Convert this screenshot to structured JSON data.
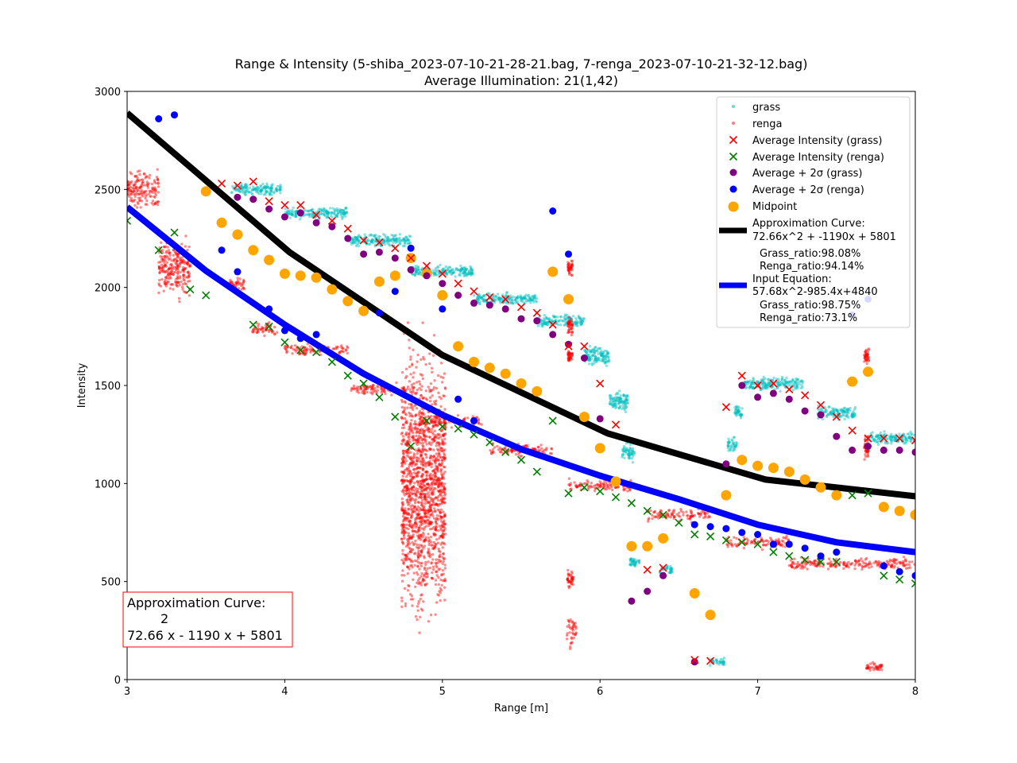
{
  "chart_data": {
    "type": "scatter",
    "title": "Range & Intensity (5-shiba_2023-07-10-21-28-21.bag, 7-renga_2023-07-10-21-32-12.bag)",
    "subtitle": "Average Illumination: 21(1,42)",
    "xlabel": "Range [m]",
    "ylabel": "Intensity",
    "xlim": [
      3,
      8
    ],
    "ylim": [
      0,
      3000
    ],
    "xticks": [
      3,
      4,
      5,
      6,
      7,
      8
    ],
    "yticks": [
      0,
      500,
      1000,
      1500,
      2000,
      2500,
      3000
    ],
    "grid": false,
    "legend_position": "top-right",
    "colors": {
      "grass": "#00bfbf",
      "renga": "#ff0000",
      "avg_grass": "#ff0000",
      "avg_renga": "#008000",
      "avg2s_grass": "#800080",
      "avg2s_renga": "#0000ff",
      "midpoint": "#ffa500",
      "approx_curve": "#000000",
      "input_curve": "#0000ff"
    },
    "legend": {
      "grass": "grass",
      "renga": "renga",
      "avg_grass": "Average Intensity (grass)",
      "avg_renga": "Average Intensity (renga)",
      "avg2s_grass": "Average + 2σ (grass)",
      "avg2s_renga": "Average + 2σ (renga)",
      "midpoint": "Midpoint",
      "approx_line1": "Approximation Curve:",
      "approx_line2": "72.66x^2 + -1190x + 5801",
      "approx_ratio1": "Grass_ratio:98.08%",
      "approx_ratio2": "Renga_ratio:94.14%",
      "input_line1": "Input Equation:",
      "input_line2": "57.68x^2-985.4x+4840",
      "input_ratio1": "Grass_ratio:98.75%",
      "input_ratio2": "Renga_ratio:73.1%"
    },
    "annotation": {
      "line1": "Approximation Curve:",
      "line2": "2",
      "line3": "72.66 x - 1190 x + 5801"
    },
    "approx_curve": {
      "x": [
        3.0,
        4.03,
        5.0,
        6.05,
        7.05,
        8.0
      ],
      "y": [
        2890,
        2180,
        1655,
        1255,
        1020,
        935
      ]
    },
    "input_curve": {
      "x": [
        3.0,
        3.5,
        4.0,
        4.5,
        5.0,
        5.5,
        6.0,
        6.5,
        7.0,
        7.5,
        8.0
      ],
      "y": [
        2410,
        2085,
        1810,
        1560,
        1350,
        1175,
        1040,
        920,
        790,
        700,
        650
      ]
    },
    "grass_clusters": [
      {
        "x": 3.82,
        "y": 2500,
        "w": 0.32,
        "h": 80
      },
      {
        "x": 4.2,
        "y": 2380,
        "w": 0.4,
        "h": 80
      },
      {
        "x": 4.6,
        "y": 2240,
        "w": 0.4,
        "h": 80
      },
      {
        "x": 5.0,
        "y": 2080,
        "w": 0.4,
        "h": 80
      },
      {
        "x": 5.4,
        "y": 1940,
        "w": 0.4,
        "h": 80
      },
      {
        "x": 5.75,
        "y": 1830,
        "w": 0.3,
        "h": 80
      },
      {
        "x": 5.98,
        "y": 1650,
        "w": 0.16,
        "h": 140
      },
      {
        "x": 6.12,
        "y": 1420,
        "w": 0.12,
        "h": 140
      },
      {
        "x": 6.18,
        "y": 1160,
        "w": 0.08,
        "h": 120
      },
      {
        "x": 6.22,
        "y": 600,
        "w": 0.06,
        "h": 70
      },
      {
        "x": 6.42,
        "y": 560,
        "w": 0.08,
        "h": 70
      },
      {
        "x": 6.74,
        "y": 90,
        "w": 0.1,
        "h": 50
      },
      {
        "x": 6.84,
        "y": 1200,
        "w": 0.06,
        "h": 90
      },
      {
        "x": 6.88,
        "y": 1360,
        "w": 0.05,
        "h": 90
      },
      {
        "x": 7.1,
        "y": 1510,
        "w": 0.38,
        "h": 90
      },
      {
        "x": 7.5,
        "y": 1360,
        "w": 0.24,
        "h": 90
      },
      {
        "x": 7.85,
        "y": 1230,
        "w": 0.3,
        "h": 80
      }
    ],
    "renga_clusters": [
      {
        "x": 3.1,
        "y": 2500,
        "w": 0.2,
        "h": 260
      },
      {
        "x": 3.3,
        "y": 2100,
        "w": 0.2,
        "h": 400
      },
      {
        "x": 3.7,
        "y": 2020,
        "w": 0.1,
        "h": 90
      },
      {
        "x": 3.88,
        "y": 1790,
        "w": 0.18,
        "h": 90
      },
      {
        "x": 4.2,
        "y": 1680,
        "w": 0.4,
        "h": 80
      },
      {
        "x": 4.62,
        "y": 1480,
        "w": 0.4,
        "h": 80
      },
      {
        "x": 5.05,
        "y": 1320,
        "w": 0.4,
        "h": 80
      },
      {
        "x": 5.5,
        "y": 1170,
        "w": 0.4,
        "h": 80
      },
      {
        "x": 6.0,
        "y": 990,
        "w": 0.4,
        "h": 80
      },
      {
        "x": 6.5,
        "y": 840,
        "w": 0.4,
        "h": 80
      },
      {
        "x": 7.0,
        "y": 700,
        "w": 0.4,
        "h": 80
      },
      {
        "x": 7.6,
        "y": 590,
        "w": 0.8,
        "h": 80
      },
      {
        "x": 4.88,
        "y": 1000,
        "w": 0.28,
        "h": 1700
      },
      {
        "x": 5.81,
        "y": 2100,
        "w": 0.03,
        "h": 120
      },
      {
        "x": 5.81,
        "y": 1800,
        "w": 0.03,
        "h": 150
      },
      {
        "x": 5.81,
        "y": 1650,
        "w": 0.03,
        "h": 100
      },
      {
        "x": 5.81,
        "y": 520,
        "w": 0.04,
        "h": 140
      },
      {
        "x": 5.82,
        "y": 250,
        "w": 0.06,
        "h": 200
      },
      {
        "x": 7.69,
        "y": 1650,
        "w": 0.03,
        "h": 100
      },
      {
        "x": 7.69,
        "y": 1180,
        "w": 0.03,
        "h": 150
      },
      {
        "x": 7.74,
        "y": 65,
        "w": 0.1,
        "h": 50
      }
    ],
    "avg_grass": {
      "x": [
        3.6,
        3.7,
        3.8,
        3.9,
        4.0,
        4.1,
        4.2,
        4.3,
        4.4,
        4.5,
        4.6,
        4.7,
        4.8,
        4.9,
        5.0,
        5.1,
        5.2,
        5.3,
        5.4,
        5.5,
        5.6,
        5.7,
        5.8,
        5.9,
        6.0,
        6.1,
        6.3,
        6.4,
        6.6,
        6.7,
        6.8,
        6.9,
        7.0,
        7.1,
        7.2,
        7.3,
        7.4,
        7.5,
        7.6,
        7.7,
        7.8,
        7.9,
        8.0
      ],
      "y": [
        2530,
        2520,
        2540,
        2440,
        2420,
        2420,
        2370,
        2340,
        2300,
        2240,
        2230,
        2200,
        2150,
        2110,
        2070,
        2020,
        1980,
        1950,
        1940,
        1900,
        1870,
        1810,
        1700,
        1700,
        1510,
        1300,
        560,
        570,
        100,
        95,
        1390,
        1550,
        1500,
        1510,
        1480,
        1450,
        1400,
        1340,
        1270,
        1230,
        1230,
        1230,
        1220
      ]
    },
    "avg_renga": {
      "x": [
        3.0,
        3.2,
        3.3,
        3.4,
        3.5,
        3.8,
        3.9,
        4.0,
        4.1,
        4.2,
        4.3,
        4.4,
        4.5,
        4.6,
        4.7,
        4.8,
        4.9,
        5.0,
        5.1,
        5.2,
        5.3,
        5.4,
        5.5,
        5.6,
        5.7,
        5.8,
        5.9,
        6.0,
        6.1,
        6.2,
        6.3,
        6.4,
        6.5,
        6.6,
        6.7,
        6.8,
        6.9,
        7.0,
        7.1,
        7.2,
        7.3,
        7.4,
        7.5,
        7.6,
        7.7,
        7.8,
        7.9,
        8.0
      ],
      "y": [
        2340,
        2190,
        2280,
        1990,
        1960,
        1810,
        1800,
        1720,
        1680,
        1670,
        1620,
        1550,
        1510,
        1440,
        1340,
        1190,
        1320,
        1290,
        1280,
        1250,
        1210,
        1160,
        1120,
        1060,
        1320,
        950,
        980,
        960,
        930,
        900,
        860,
        840,
        800,
        740,
        730,
        710,
        700,
        690,
        650,
        630,
        610,
        600,
        600,
        940,
        950,
        530,
        510,
        490
      ]
    },
    "avg2s_grass": {
      "x": [
        3.7,
        3.8,
        3.9,
        4.0,
        4.1,
        4.2,
        4.3,
        4.4,
        4.5,
        4.6,
        4.7,
        4.8,
        4.9,
        5.0,
        5.1,
        5.2,
        5.3,
        5.4,
        5.5,
        5.6,
        5.7,
        5.8,
        5.9,
        6.0,
        6.2,
        6.3,
        6.4,
        6.6,
        6.8,
        6.9,
        7.0,
        7.1,
        7.2,
        7.3,
        7.4,
        7.5,
        7.6,
        7.7,
        7.8,
        7.9,
        8.0
      ],
      "y": [
        2460,
        2450,
        2400,
        2360,
        2380,
        2330,
        2310,
        2250,
        2170,
        2180,
        2150,
        2090,
        2060,
        2020,
        1960,
        1920,
        1910,
        1890,
        1840,
        1830,
        1760,
        1710,
        1640,
        1330,
        400,
        450,
        530,
        90,
        1100,
        1500,
        1440,
        1460,
        1430,
        1370,
        1350,
        1240,
        1170,
        1190,
        1170,
        1170,
        1160
      ]
    },
    "avg2s_renga": {
      "x": [
        3.2,
        3.3,
        3.6,
        3.7,
        3.9,
        4.0,
        4.1,
        4.2,
        4.6,
        4.7,
        4.8,
        5.0,
        5.1,
        5.2,
        5.7,
        5.8,
        6.6,
        6.7,
        6.8,
        6.9,
        7.0,
        7.1,
        7.2,
        7.3,
        7.4,
        7.5,
        7.6,
        7.7,
        7.8,
        7.9,
        8.0
      ],
      "y": [
        2860,
        2880,
        2190,
        2080,
        1890,
        1780,
        1740,
        1760,
        1870,
        1980,
        2200,
        1890,
        1430,
        1320,
        2390,
        2170,
        790,
        780,
        770,
        750,
        740,
        690,
        690,
        670,
        630,
        650,
        1860,
        1940,
        580,
        550,
        530
      ]
    },
    "midpoint": {
      "x": [
        3.5,
        3.6,
        3.7,
        3.8,
        3.9,
        4.0,
        4.1,
        4.2,
        4.3,
        4.4,
        4.5,
        4.6,
        4.7,
        4.8,
        4.9,
        5.0,
        5.1,
        5.2,
        5.3,
        5.4,
        5.5,
        5.6,
        5.7,
        5.8,
        5.9,
        6.0,
        6.1,
        6.2,
        6.3,
        6.4,
        6.6,
        6.7,
        6.8,
        6.9,
        7.0,
        7.1,
        7.2,
        7.3,
        7.4,
        7.5,
        7.6,
        7.7,
        7.8,
        7.9,
        8.0
      ],
      "y": [
        2490,
        2330,
        2270,
        2190,
        2140,
        2070,
        2060,
        2050,
        1990,
        1930,
        1880,
        2030,
        2060,
        2150,
        2070,
        1960,
        1700,
        1620,
        1590,
        1560,
        1510,
        1470,
        2080,
        1940,
        1340,
        1180,
        1010,
        680,
        680,
        720,
        440,
        330,
        940,
        1120,
        1090,
        1080,
        1060,
        1020,
        980,
        940,
        1520,
        1570,
        880,
        860,
        840
      ]
    }
  }
}
